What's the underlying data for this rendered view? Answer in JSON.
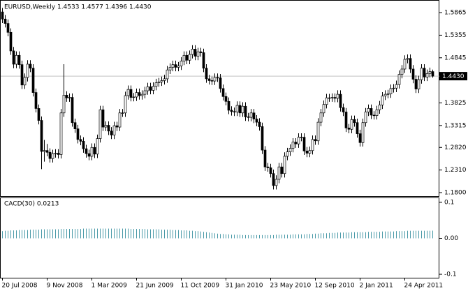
{
  "chart_data": [
    {
      "type": "candlestick",
      "title": "EURUSD,Weekly  1.4533 1.4577 1.4396 1.4430",
      "price_label": "1.4430",
      "up_color": "#ffffff",
      "down_color": "#000000",
      "outline_color": "#000000",
      "price_line_color": "#c0c0c0",
      "categories": [
        "20 Jul 2008",
        null,
        null,
        null,
        null,
        null,
        null,
        null,
        null,
        null,
        null,
        null,
        null,
        null,
        null,
        null,
        "9 Nov 2008",
        null,
        null,
        null,
        null,
        null,
        null,
        null,
        null,
        null,
        null,
        null,
        null,
        null,
        null,
        null,
        "1 Mar 2009",
        null,
        null,
        null,
        null,
        null,
        null,
        null,
        null,
        null,
        null,
        null,
        null,
        null,
        null,
        null,
        "21 Jun 2009",
        null,
        null,
        null,
        null,
        null,
        null,
        null,
        null,
        null,
        null,
        null,
        null,
        null,
        null,
        null,
        "11 Oct 2009",
        null,
        null,
        null,
        null,
        null,
        null,
        null,
        null,
        null,
        null,
        null,
        null,
        null,
        null,
        null,
        "31 Jan 2010",
        null,
        null,
        null,
        null,
        null,
        null,
        null,
        null,
        null,
        null,
        null,
        null,
        null,
        null,
        null,
        "23 May 2010",
        null,
        null,
        null,
        null,
        null,
        null,
        null,
        null,
        null,
        null,
        null,
        null,
        null,
        null,
        null,
        "12 Sep 2010",
        null,
        null,
        null,
        null,
        null,
        null,
        null,
        null,
        null,
        null,
        null,
        null,
        null,
        null,
        null,
        "2 Jan 2011",
        null,
        null,
        null,
        null,
        null,
        null,
        null,
        null,
        null,
        null,
        null,
        null,
        null,
        null,
        null,
        "24 Apr 2011",
        null,
        null,
        null,
        null,
        null,
        null,
        null,
        null,
        null,
        null
      ],
      "open": [
        1.588,
        1.572,
        1.562,
        1.542,
        1.5,
        1.47,
        1.49,
        1.469,
        1.423,
        1.44,
        1.47,
        1.461,
        1.406,
        1.37,
        1.343,
        1.273,
        1.275,
        1.271,
        1.257,
        1.268,
        1.269,
        1.266,
        1.36,
        1.4,
        1.394,
        1.395,
        1.338,
        1.324,
        1.3,
        1.296,
        1.279,
        1.268,
        1.262,
        1.282,
        1.267,
        1.302,
        1.367,
        1.328,
        1.332,
        1.319,
        1.31,
        1.331,
        1.328,
        1.36,
        1.36,
        1.399,
        1.413,
        1.395,
        1.396,
        1.406,
        1.399,
        1.402,
        1.41,
        1.419,
        1.411,
        1.42,
        1.428,
        1.43,
        1.433,
        1.437,
        1.457,
        1.463,
        1.469,
        1.463,
        1.466,
        1.477,
        1.49,
        1.479,
        1.492,
        1.504,
        1.488,
        1.498,
        1.496,
        1.461,
        1.437,
        1.433,
        1.432,
        1.44,
        1.439,
        1.415,
        1.397,
        1.386,
        1.366,
        1.363,
        1.362,
        1.377,
        1.36,
        1.375,
        1.351,
        1.35,
        1.36,
        1.346,
        1.339,
        1.329,
        1.276,
        1.238,
        1.236,
        1.223,
        1.196,
        1.21,
        1.238,
        1.223,
        1.262,
        1.272,
        1.28,
        1.294,
        1.29,
        1.305,
        1.305,
        1.274,
        1.269,
        1.275,
        1.3,
        1.297,
        1.339,
        1.36,
        1.379,
        1.394,
        1.394,
        1.395,
        1.393,
        1.402,
        1.372,
        1.362,
        1.326,
        1.323,
        1.345,
        1.338,
        1.313,
        1.293,
        1.338,
        1.362,
        1.37,
        1.355,
        1.354,
        1.367,
        1.378,
        1.398,
        1.402,
        1.403,
        1.415,
        1.416,
        1.424,
        1.447,
        1.459,
        1.481,
        1.483,
        1.459,
        1.436,
        1.414,
        1.435,
        1.461,
        1.441,
        1.449,
        1.4533
      ],
      "high": [
        1.597,
        1.581,
        1.571,
        1.551,
        1.509,
        1.499,
        1.499,
        1.478,
        1.449,
        1.479,
        1.479,
        1.47,
        1.415,
        1.379,
        1.352,
        1.299,
        1.29,
        1.28,
        1.277,
        1.278,
        1.278,
        1.369,
        1.47,
        1.409,
        1.404,
        1.404,
        1.347,
        1.333,
        1.309,
        1.305,
        1.288,
        1.277,
        1.291,
        1.291,
        1.311,
        1.376,
        1.376,
        1.341,
        1.341,
        1.328,
        1.34,
        1.34,
        1.369,
        1.369,
        1.408,
        1.422,
        1.422,
        1.405,
        1.415,
        1.415,
        1.411,
        1.419,
        1.428,
        1.428,
        1.429,
        1.437,
        1.439,
        1.442,
        1.446,
        1.466,
        1.472,
        1.478,
        1.478,
        1.475,
        1.486,
        1.499,
        1.499,
        1.501,
        1.513,
        1.513,
        1.507,
        1.507,
        1.505,
        1.47,
        1.446,
        1.442,
        1.449,
        1.449,
        1.448,
        1.424,
        1.406,
        1.395,
        1.375,
        1.372,
        1.386,
        1.386,
        1.384,
        1.384,
        1.36,
        1.369,
        1.369,
        1.355,
        1.348,
        1.338,
        1.285,
        1.247,
        1.245,
        1.232,
        1.219,
        1.247,
        1.247,
        1.271,
        1.281,
        1.289,
        1.303,
        1.303,
        1.314,
        1.314,
        1.314,
        1.283,
        1.284,
        1.309,
        1.309,
        1.348,
        1.369,
        1.388,
        1.403,
        1.403,
        1.404,
        1.404,
        1.411,
        1.411,
        1.381,
        1.371,
        1.335,
        1.354,
        1.354,
        1.347,
        1.322,
        1.347,
        1.371,
        1.379,
        1.379,
        1.364,
        1.376,
        1.387,
        1.407,
        1.411,
        1.412,
        1.424,
        1.425,
        1.433,
        1.456,
        1.468,
        1.49,
        1.492,
        1.492,
        1.468,
        1.445,
        1.444,
        1.47,
        1.47,
        1.458,
        1.4622,
        1.4577
      ],
      "low": [
        1.563,
        1.553,
        1.533,
        1.491,
        1.461,
        1.461,
        1.46,
        1.414,
        1.414,
        1.431,
        1.452,
        1.397,
        1.361,
        1.334,
        1.233,
        1.25,
        1.262,
        1.248,
        1.248,
        1.259,
        1.257,
        1.257,
        1.351,
        1.385,
        1.385,
        1.329,
        1.315,
        1.291,
        1.287,
        1.27,
        1.259,
        1.253,
        1.253,
        1.258,
        1.258,
        1.293,
        1.319,
        1.319,
        1.31,
        1.301,
        1.301,
        1.319,
        1.319,
        1.351,
        1.351,
        1.39,
        1.386,
        1.386,
        1.387,
        1.39,
        1.39,
        1.393,
        1.401,
        1.402,
        1.402,
        1.411,
        1.419,
        1.421,
        1.424,
        1.428,
        1.448,
        1.454,
        1.454,
        1.454,
        1.457,
        1.468,
        1.47,
        1.47,
        1.483,
        1.479,
        1.479,
        1.487,
        1.452,
        1.428,
        1.424,
        1.423,
        1.423,
        1.43,
        1.406,
        1.388,
        1.377,
        1.357,
        1.354,
        1.353,
        1.353,
        1.351,
        1.351,
        1.342,
        1.341,
        1.341,
        1.337,
        1.33,
        1.32,
        1.267,
        1.229,
        1.227,
        1.214,
        1.187,
        1.187,
        1.201,
        1.214,
        1.214,
        1.253,
        1.263,
        1.271,
        1.281,
        1.281,
        1.296,
        1.265,
        1.26,
        1.26,
        1.266,
        1.288,
        1.288,
        1.33,
        1.351,
        1.37,
        1.385,
        1.385,
        1.384,
        1.384,
        1.363,
        1.353,
        1.317,
        1.314,
        1.314,
        1.329,
        1.304,
        1.284,
        1.284,
        1.329,
        1.353,
        1.346,
        1.345,
        1.345,
        1.358,
        1.369,
        1.389,
        1.393,
        1.394,
        1.406,
        1.407,
        1.415,
        1.438,
        1.45,
        1.472,
        1.45,
        1.427,
        1.405,
        1.405,
        1.426,
        1.432,
        1.432,
        1.44,
        1.4396
      ],
      "close": [
        1.572,
        1.562,
        1.542,
        1.5,
        1.47,
        1.49,
        1.469,
        1.423,
        1.44,
        1.47,
        1.461,
        1.406,
        1.37,
        1.343,
        1.273,
        1.275,
        1.271,
        1.257,
        1.268,
        1.269,
        1.266,
        1.36,
        1.4,
        1.394,
        1.395,
        1.338,
        1.324,
        1.3,
        1.296,
        1.279,
        1.268,
        1.262,
        1.282,
        1.267,
        1.302,
        1.367,
        1.328,
        1.332,
        1.319,
        1.31,
        1.331,
        1.328,
        1.36,
        1.36,
        1.399,
        1.413,
        1.395,
        1.396,
        1.406,
        1.399,
        1.402,
        1.41,
        1.419,
        1.411,
        1.42,
        1.428,
        1.43,
        1.433,
        1.437,
        1.457,
        1.463,
        1.469,
        1.463,
        1.466,
        1.477,
        1.49,
        1.479,
        1.492,
        1.504,
        1.488,
        1.498,
        1.496,
        1.461,
        1.437,
        1.433,
        1.432,
        1.44,
        1.439,
        1.415,
        1.397,
        1.386,
        1.366,
        1.363,
        1.362,
        1.377,
        1.36,
        1.375,
        1.351,
        1.35,
        1.36,
        1.346,
        1.339,
        1.329,
        1.276,
        1.238,
        1.236,
        1.223,
        1.196,
        1.21,
        1.238,
        1.223,
        1.262,
        1.272,
        1.28,
        1.294,
        1.29,
        1.305,
        1.305,
        1.274,
        1.269,
        1.275,
        1.3,
        1.297,
        1.339,
        1.36,
        1.379,
        1.394,
        1.394,
        1.395,
        1.393,
        1.402,
        1.372,
        1.362,
        1.326,
        1.323,
        1.345,
        1.338,
        1.313,
        1.293,
        1.338,
        1.362,
        1.37,
        1.355,
        1.354,
        1.367,
        1.378,
        1.398,
        1.402,
        1.403,
        1.415,
        1.416,
        1.424,
        1.447,
        1.459,
        1.481,
        1.483,
        1.459,
        1.436,
        1.414,
        1.435,
        1.461,
        1.441,
        1.449,
        1.4533,
        1.443
      ],
      "ylim": [
        1.1721,
        1.6134
      ],
      "yticks": [
        {
          "value": 1.5865,
          "label": "1.5865"
        },
        {
          "value": 1.5355,
          "label": "1.5355"
        },
        {
          "value": 1.4845,
          "label": "1.4845"
        },
        {
          "value": 1.3825,
          "label": "1.3825"
        },
        {
          "value": 1.3315,
          "label": "1.3315"
        },
        {
          "value": 1.282,
          "label": "1.2820"
        },
        {
          "value": 1.231,
          "label": "1.2310"
        },
        {
          "value": 1.18,
          "label": "1.1800"
        }
      ]
    },
    {
      "type": "bar",
      "title": "CACD(30) 0.0213",
      "color": "#4a9aa8",
      "values": [
        0.02,
        0.021,
        0.021,
        0.022,
        0.022,
        0.022,
        0.023,
        0.023,
        0.023,
        0.023,
        0.024,
        0.024,
        0.024,
        0.024,
        0.025,
        0.025,
        0.025,
        0.025,
        0.025,
        0.025,
        0.025,
        0.026,
        0.026,
        0.026,
        0.026,
        0.026,
        0.026,
        0.026,
        0.026,
        0.027,
        0.027,
        0.027,
        0.027,
        0.027,
        0.027,
        0.027,
        0.027,
        0.027,
        0.027,
        0.027,
        0.027,
        0.027,
        0.027,
        0.027,
        0.027,
        0.027,
        0.026,
        0.026,
        0.026,
        0.026,
        0.026,
        0.026,
        0.025,
        0.025,
        0.025,
        0.025,
        0.025,
        0.024,
        0.024,
        0.024,
        0.024,
        0.023,
        0.023,
        0.023,
        0.022,
        0.022,
        0.022,
        0.021,
        0.021,
        0.02,
        0.02,
        0.019,
        0.018,
        0.017,
        0.016,
        0.015,
        0.014,
        0.013,
        0.012,
        0.012,
        0.011,
        0.011,
        0.01,
        0.01,
        0.01,
        0.01,
        0.009,
        0.009,
        0.009,
        0.009,
        0.009,
        0.009,
        0.009,
        0.009,
        0.009,
        0.009,
        0.009,
        0.009,
        0.01,
        0.01,
        0.01,
        0.01,
        0.01,
        0.01,
        0.011,
        0.011,
        0.011,
        0.011,
        0.011,
        0.012,
        0.012,
        0.012,
        0.013,
        0.013,
        0.014,
        0.014,
        0.014,
        0.015,
        0.015,
        0.015,
        0.016,
        0.016,
        0.016,
        0.016,
        0.016,
        0.017,
        0.017,
        0.017,
        0.017,
        0.017,
        0.017,
        0.018,
        0.018,
        0.018,
        0.018,
        0.018,
        0.019,
        0.019,
        0.019,
        0.019,
        0.019,
        0.02,
        0.02,
        0.02,
        0.02,
        0.021,
        0.021,
        0.021,
        0.021,
        0.021,
        0.021,
        0.021,
        0.021,
        0.021,
        0.0213
      ],
      "ylim": [
        -0.1096,
        0.1115
      ],
      "yticks": [
        0.1,
        {
          "value": 0,
          "label": "0.00"
        },
        -0.1
      ]
    }
  ]
}
